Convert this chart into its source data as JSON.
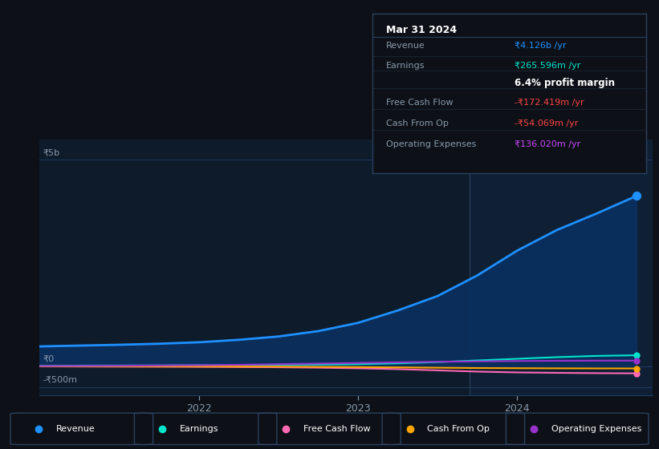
{
  "bg_color": "#0d1117",
  "plot_bg_color": "#0d1b2a",
  "plot_bg_color_right": "#0f2035",
  "grid_color": "#1e3a5f",
  "title_box": {
    "date": "Mar 31 2024",
    "rows": [
      {
        "label": "Revenue",
        "value": "₹4.126b /yr",
        "value_color": "#1e90ff"
      },
      {
        "label": "Earnings",
        "value": "₹265.596m /yr",
        "value_color": "#00e5cc"
      },
      {
        "label": "",
        "value": "6.4% profit margin",
        "value_color": "#ffffff"
      },
      {
        "label": "Free Cash Flow",
        "value": "-₹172.419m /yr",
        "value_color": "#ff4444"
      },
      {
        "label": "Cash From Op",
        "value": "-₹54.069m /yr",
        "value_color": "#ff4444"
      },
      {
        "label": "Operating Expenses",
        "value": "₹136.020m /yr",
        "value_color": "#cc44ff"
      }
    ]
  },
  "y_labels": [
    "₹5b",
    "₹0",
    "-₹500m"
  ],
  "y_values": [
    5000000000,
    0,
    -500000000
  ],
  "x_ticks": [
    2022,
    2023,
    2024
  ],
  "x_min": 2021.0,
  "x_max": 2024.85,
  "y_min": -700000000,
  "y_max": 5500000000,
  "vertical_line_x": 2023.7,
  "series": {
    "Revenue": {
      "color": "#1e90ff",
      "fill": true,
      "fill_color": "#0a3060",
      "x": [
        2021.0,
        2021.25,
        2021.5,
        2021.75,
        2022.0,
        2022.25,
        2022.5,
        2022.75,
        2023.0,
        2023.25,
        2023.5,
        2023.75,
        2024.0,
        2024.25,
        2024.5,
        2024.75
      ],
      "y": [
        480000000,
        500000000,
        520000000,
        545000000,
        580000000,
        640000000,
        720000000,
        850000000,
        1050000000,
        1350000000,
        1700000000,
        2200000000,
        2800000000,
        3300000000,
        3700000000,
        4126000000
      ]
    },
    "Earnings": {
      "color": "#00e5cc",
      "x": [
        2021.0,
        2021.25,
        2021.5,
        2021.75,
        2022.0,
        2022.25,
        2022.5,
        2022.75,
        2023.0,
        2023.25,
        2023.5,
        2023.75,
        2024.0,
        2024.25,
        2024.5,
        2024.75
      ],
      "y": [
        10000000,
        15000000,
        18000000,
        20000000,
        25000000,
        30000000,
        35000000,
        40000000,
        50000000,
        70000000,
        100000000,
        140000000,
        180000000,
        220000000,
        250000000,
        265596000
      ]
    },
    "Free Cash Flow": {
      "color": "#ff69b4",
      "x": [
        2021.0,
        2021.25,
        2021.5,
        2021.75,
        2022.0,
        2022.25,
        2022.5,
        2022.75,
        2023.0,
        2023.25,
        2023.5,
        2023.75,
        2024.0,
        2024.25,
        2024.5,
        2024.75
      ],
      "y": [
        -5000000,
        -8000000,
        -10000000,
        -12000000,
        -15000000,
        -20000000,
        -25000000,
        -35000000,
        -50000000,
        -70000000,
        -100000000,
        -130000000,
        -150000000,
        -160000000,
        -168000000,
        -172419000
      ]
    },
    "Cash From Op": {
      "color": "#ffa500",
      "x": [
        2021.0,
        2021.25,
        2021.5,
        2021.75,
        2022.0,
        2022.25,
        2022.5,
        2022.75,
        2023.0,
        2023.25,
        2023.5,
        2023.75,
        2024.0,
        2024.25,
        2024.5,
        2024.75
      ],
      "y": [
        -2000000,
        -3000000,
        -4000000,
        -5000000,
        -6000000,
        -8000000,
        -10000000,
        -15000000,
        -20000000,
        -28000000,
        -36000000,
        -44000000,
        -48000000,
        -51000000,
        -53000000,
        -54069000
      ]
    },
    "Operating Expenses": {
      "color": "#9932cc",
      "x": [
        2021.0,
        2021.25,
        2021.5,
        2021.75,
        2022.0,
        2022.25,
        2022.5,
        2022.75,
        2023.0,
        2023.25,
        2023.5,
        2023.75,
        2024.0,
        2024.25,
        2024.5,
        2024.75
      ],
      "y": [
        5000000,
        8000000,
        12000000,
        18000000,
        25000000,
        35000000,
        50000000,
        65000000,
        80000000,
        95000000,
        108000000,
        118000000,
        126000000,
        132000000,
        135000000,
        136020000
      ]
    }
  },
  "legend": [
    {
      "label": "Revenue",
      "color": "#1e90ff"
    },
    {
      "label": "Earnings",
      "color": "#00e5cc"
    },
    {
      "label": "Free Cash Flow",
      "color": "#ff69b4"
    },
    {
      "label": "Cash From Op",
      "color": "#ffa500"
    },
    {
      "label": "Operating Expenses",
      "color": "#9932cc"
    }
  ]
}
